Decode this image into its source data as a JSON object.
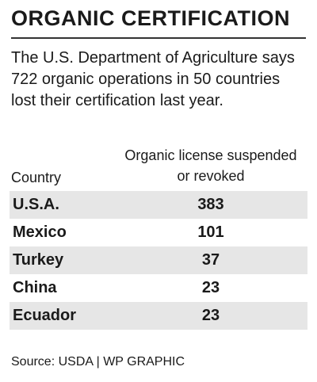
{
  "header": {
    "title": "ORGANIC CERTIFICATION"
  },
  "intro": "The U.S. Department of Agriculture says 722 organic operations in 50 countries lost their certification last year.",
  "table": {
    "headers": [
      "Country",
      "Organic license suspended or revoked"
    ],
    "rows": [
      [
        "U.S.A.",
        383
      ],
      [
        "Mexico",
        101
      ],
      [
        "Turkey",
        37
      ],
      [
        "China",
        23
      ],
      [
        "Ecuador",
        23
      ]
    ]
  },
  "source": "Source: USDA | WP GRAPHIC"
}
